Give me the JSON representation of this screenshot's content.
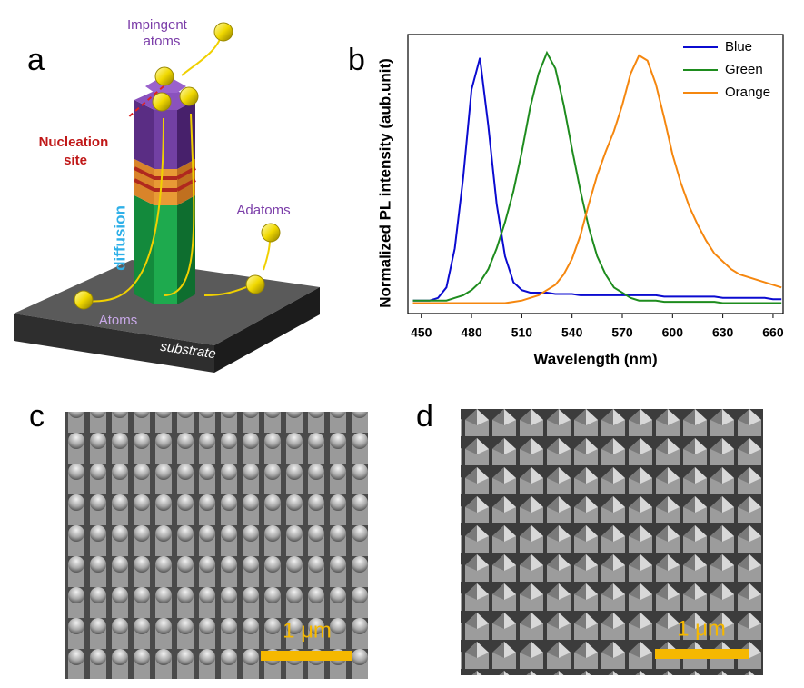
{
  "panel_labels": [
    "a",
    "b",
    "c",
    "d"
  ],
  "diagram": {
    "impingent": [
      "Impingent",
      "atoms"
    ],
    "nucleation": [
      "Nucleation",
      "site"
    ],
    "diffusion": "diffusion",
    "adatoms": "Adatoms",
    "atoms": "Atoms",
    "substrate": "substrate"
  },
  "scale_bars": [
    "1 μm",
    "1 μm"
  ],
  "chart_data": {
    "type": "line",
    "xlabel": "Wavelength (nm)",
    "ylabel": "Normalized PL intensity (aub.unit)",
    "x": [
      445,
      450,
      455,
      460,
      465,
      470,
      475,
      480,
      485,
      490,
      495,
      500,
      505,
      510,
      515,
      520,
      525,
      530,
      535,
      540,
      545,
      550,
      555,
      560,
      565,
      570,
      575,
      580,
      585,
      590,
      595,
      600,
      605,
      610,
      615,
      620,
      625,
      630,
      635,
      640,
      645,
      650,
      655,
      660,
      665
    ],
    "series": [
      {
        "name": "Blue",
        "color": "#0b0bd0",
        "values": [
          0.05,
          0.05,
          0.05,
          0.06,
          0.1,
          0.25,
          0.52,
          0.86,
          0.98,
          0.72,
          0.42,
          0.22,
          0.12,
          0.09,
          0.08,
          0.08,
          0.08,
          0.075,
          0.075,
          0.075,
          0.07,
          0.07,
          0.07,
          0.07,
          0.07,
          0.07,
          0.07,
          0.07,
          0.07,
          0.07,
          0.065,
          0.065,
          0.065,
          0.065,
          0.065,
          0.065,
          0.065,
          0.06,
          0.06,
          0.06,
          0.06,
          0.06,
          0.06,
          0.055,
          0.055
        ]
      },
      {
        "name": "Green",
        "color": "#1e8c1e",
        "values": [
          0.05,
          0.05,
          0.05,
          0.05,
          0.05,
          0.06,
          0.07,
          0.09,
          0.12,
          0.17,
          0.25,
          0.35,
          0.47,
          0.62,
          0.79,
          0.92,
          1.0,
          0.94,
          0.8,
          0.63,
          0.47,
          0.33,
          0.22,
          0.15,
          0.1,
          0.08,
          0.06,
          0.05,
          0.05,
          0.05,
          0.045,
          0.045,
          0.045,
          0.045,
          0.045,
          0.045,
          0.045,
          0.04,
          0.04,
          0.04,
          0.04,
          0.04,
          0.04,
          0.04,
          0.04
        ]
      },
      {
        "name": "Orange",
        "color": "#f5870f",
        "values": [
          0.04,
          0.04,
          0.04,
          0.04,
          0.04,
          0.04,
          0.04,
          0.04,
          0.04,
          0.04,
          0.04,
          0.04,
          0.045,
          0.05,
          0.06,
          0.07,
          0.09,
          0.11,
          0.15,
          0.21,
          0.3,
          0.42,
          0.53,
          0.62,
          0.7,
          0.8,
          0.92,
          0.99,
          0.97,
          0.88,
          0.75,
          0.61,
          0.5,
          0.41,
          0.34,
          0.28,
          0.23,
          0.2,
          0.17,
          0.15,
          0.14,
          0.13,
          0.12,
          0.11,
          0.1
        ]
      }
    ],
    "xlim": [
      442,
      666
    ],
    "ylim": [
      0,
      1.07
    ],
    "xticks": [
      450,
      480,
      510,
      540,
      570,
      600,
      630,
      660
    ],
    "legend": "upper right"
  }
}
